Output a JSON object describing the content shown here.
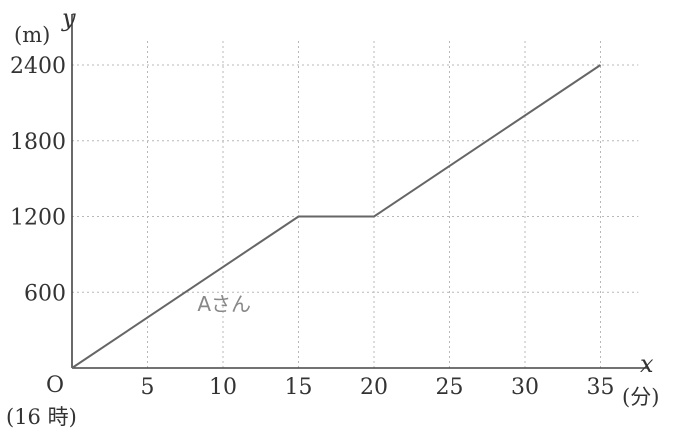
{
  "chart_data": {
    "type": "line",
    "x": [
      0,
      15,
      20,
      35
    ],
    "series": [
      {
        "name": "Aさん",
        "values": [
          0,
          1200,
          1200,
          2400
        ]
      }
    ],
    "xlabel": "x",
    "ylabel": "y",
    "x_unit": "(分)",
    "y_unit": "(m)",
    "origin_label": "O",
    "origin_note": "(16 時)",
    "xticks": [
      5,
      10,
      15,
      20,
      25,
      30,
      35
    ],
    "yticks": [
      600,
      1200,
      1800,
      2400
    ],
    "xlim": [
      0,
      37.5
    ],
    "ylim": [
      0,
      2600
    ],
    "grid": true,
    "colors": {
      "line": "#666666",
      "grid": "#b8b8b8",
      "axis": "#444444"
    }
  }
}
